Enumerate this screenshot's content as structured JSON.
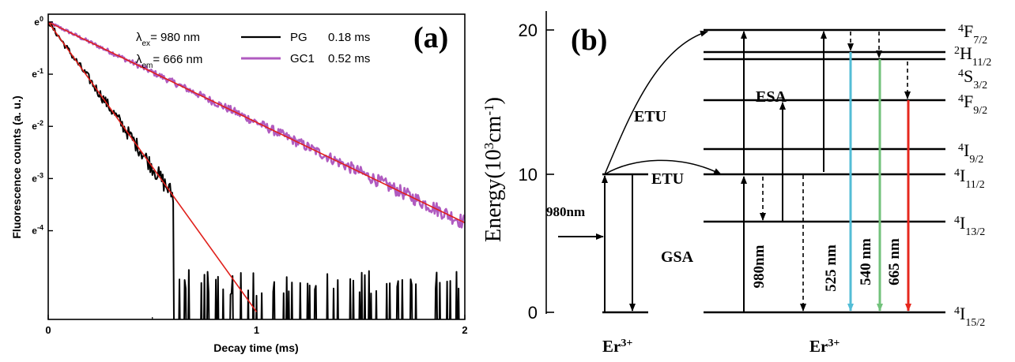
{
  "chart_data": [
    {
      "panel_label": "(a)",
      "type": "line",
      "xlabel": "Decay time (ms)",
      "ylabel": "Fluorescence counts (a. u.)",
      "xlim": [
        0,
        2
      ],
      "ylim_ln": [
        -5.7,
        0.15
      ],
      "yscale": "log (base e)",
      "x_ticks": [
        "0",
        "1",
        "2"
      ],
      "y_ticks": [
        {
          "base": "e",
          "exp": "0",
          "ln": 0
        },
        {
          "base": "e",
          "exp": "-1",
          "ln": -1
        },
        {
          "base": "e",
          "exp": "-2",
          "ln": -2
        },
        {
          "base": "e",
          "exp": "-3",
          "ln": -3
        },
        {
          "base": "e",
          "exp": "-4",
          "ln": -4
        }
      ],
      "annotations": {
        "ex": {
          "sym": "λ",
          "sub": "ex",
          "text": "= 980 nm"
        },
        "em": {
          "sym": "λ",
          "sub": "em",
          "text": "= 666 nm"
        }
      },
      "legend_position": "top-right",
      "series": [
        {
          "name": "PG",
          "lifetime": "0.18 ms",
          "color": "#000000",
          "tau_ms": 0.18,
          "noise_floor_ln": -5.0
        },
        {
          "name": "GC1",
          "lifetime": "0.52 ms",
          "color": "#b05bc0",
          "tau_ms": 0.52,
          "noise_floor_ln": -5.6
        }
      ],
      "fit_color": "#e0201b",
      "fits": [
        {
          "tau_ms": 0.18,
          "x_end_ms": 1.0
        },
        {
          "tau_ms": 0.52,
          "x_end_ms": 2.0
        }
      ]
    },
    {
      "panel_label": "(b)",
      "type": "diagram",
      "ylabel": {
        "pre": "Energy(10",
        "sup": "3",
        "post": "cm",
        "sup2": "-1",
        "close": ")"
      },
      "ylim": [
        0,
        20
      ],
      "y_ticks": [
        "0",
        "10",
        "20"
      ],
      "ion_label": {
        "text": "Er",
        "sup": "3+"
      },
      "levels": [
        {
          "id": "4I15/2",
          "energy": 0,
          "pre": "4",
          "term": "I",
          "sub": "15/2"
        },
        {
          "id": "4I13/2",
          "energy": 6.1,
          "pre": "4",
          "term": "I",
          "sub": "13/2"
        },
        {
          "id": "4I11/2",
          "energy": 10.0,
          "pre": "4",
          "term": "I",
          "sub": "11/2"
        },
        {
          "id": "4I9/2",
          "energy": 12.0,
          "pre": "4",
          "term": "I",
          "sub": "9/2"
        },
        {
          "id": "4F9/2",
          "energy": 15.0,
          "pre": "4",
          "term": "F",
          "sub": "9/2"
        },
        {
          "id": "4S3/2",
          "energy": 18.0,
          "pre": "4",
          "term": "S",
          "sub": "3/2"
        },
        {
          "id": "2H11/2",
          "energy": 18.6,
          "pre": "2",
          "term": "H",
          "sub": "11/2"
        },
        {
          "id": "4F7/2",
          "energy": 20.0,
          "pre": "4",
          "term": "F",
          "sub": "7/2"
        }
      ],
      "process_labels": [
        "ETU",
        "ETU",
        "ESA",
        "GSA"
      ],
      "pump_label": "980nm",
      "transition_labels": [
        "980nm",
        "525 nm",
        "540 nm",
        "665 nm"
      ],
      "emission_colors": {
        "540 nm": "#53bdd6",
        "540 nm green": "#72c27b",
        "665 nm": "#e6271d"
      }
    }
  ]
}
